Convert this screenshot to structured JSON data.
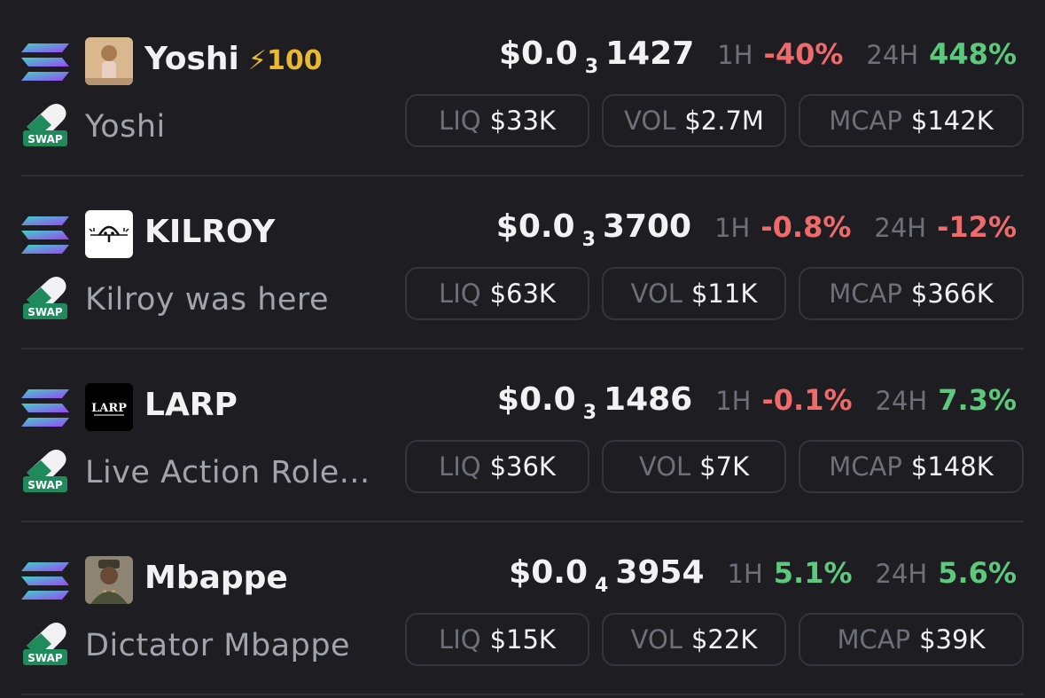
{
  "tokens": [
    {
      "symbol": "Yoshi",
      "boost": "⚡100",
      "name": "Yoshi",
      "price_prefix": "$0.0",
      "price_zeros": "3",
      "price_digits": "1427",
      "tf1": "1H",
      "chg1": "-40%",
      "tf2": "24H",
      "chg2": "448%",
      "liq_label": "LIQ",
      "liq": "$33K",
      "vol_label": "VOL",
      "vol": "$2.7M",
      "mcap_label": "MCAP",
      "mcap": "$142K",
      "dex_badge": "SWAP",
      "avatar_color": "#c9a27a"
    },
    {
      "symbol": "KILROY",
      "boost": "",
      "name": "Kilroy was here",
      "price_prefix": "$0.0",
      "price_zeros": "3",
      "price_digits": "3700",
      "tf1": "1H",
      "chg1": "-0.8%",
      "tf2": "24H",
      "chg2": "-12%",
      "liq_label": "LIQ",
      "liq": "$63K",
      "vol_label": "VOL",
      "vol": "$11K",
      "mcap_label": "MCAP",
      "mcap": "$366K",
      "dex_badge": "SWAP",
      "avatar_color": "#ffffff"
    },
    {
      "symbol": "LARP",
      "boost": "",
      "name": "Live Action Role...",
      "price_prefix": "$0.0",
      "price_zeros": "3",
      "price_digits": "1486",
      "tf1": "1H",
      "chg1": "-0.1%",
      "tf2": "24H",
      "chg2": "7.3%",
      "liq_label": "LIQ",
      "liq": "$36K",
      "vol_label": "VOL",
      "vol": "$7K",
      "mcap_label": "MCAP",
      "mcap": "$148K",
      "dex_badge": "SWAP",
      "avatar_text": "LARP",
      "avatar_color": "#000000"
    },
    {
      "symbol": "Mbappe",
      "boost": "",
      "name": "Dictator Mbappe",
      "price_prefix": "$0.0",
      "price_zeros": "4",
      "price_digits": "3954",
      "tf1": "1H",
      "chg1": "5.1%",
      "tf2": "24H",
      "chg2": "5.6%",
      "liq_label": "LIQ",
      "liq": "$15K",
      "vol_label": "VOL",
      "vol": "$22K",
      "mcap_label": "MCAP",
      "mcap": "$39K",
      "dex_badge": "SWAP",
      "avatar_color": "#7a6a58"
    }
  ],
  "colors": {
    "background": "#1d1d22",
    "negative": "#ef6a6a",
    "positive": "#5cc97d",
    "boost": "#e8b931",
    "muted": "#6f6f77"
  },
  "icons": {
    "chain": "solana-icon",
    "dex": "swap-dex-icon"
  }
}
